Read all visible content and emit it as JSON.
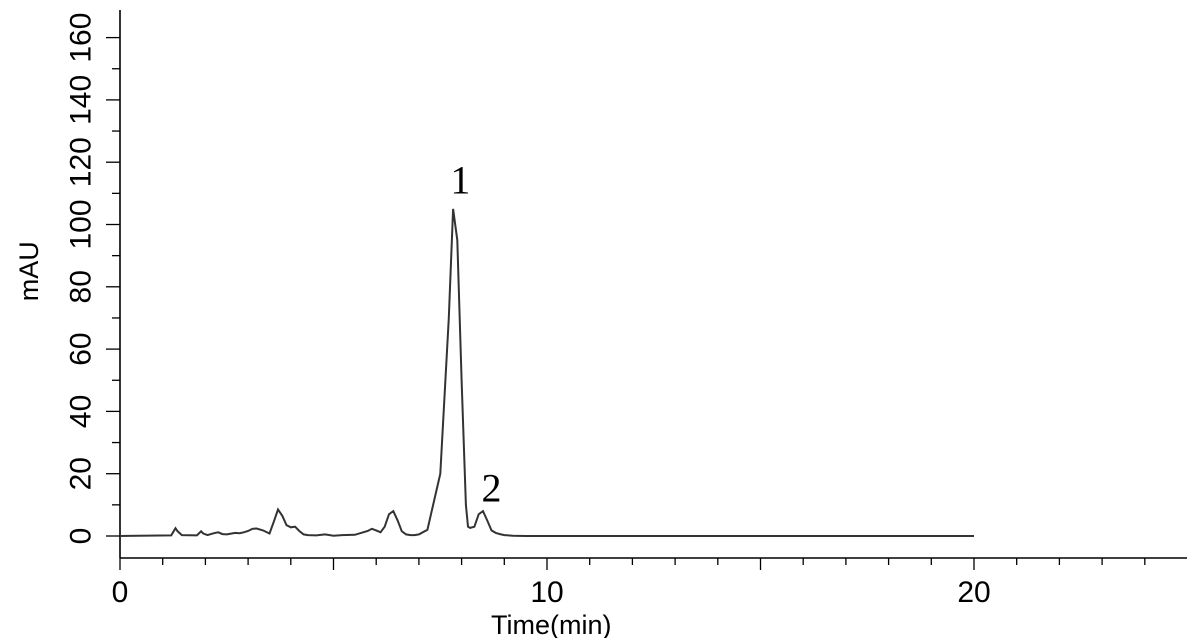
{
  "chart_data": {
    "type": "line",
    "title": "",
    "xlabel": "Time(min)",
    "ylabel": "mAU",
    "xlim": [
      0,
      25
    ],
    "ylim": [
      -7,
      170
    ],
    "x_ticks": [
      0,
      10,
      20
    ],
    "y_ticks": [
      0,
      20,
      40,
      60,
      80,
      100,
      120,
      140,
      160
    ],
    "grid": false,
    "series": [
      {
        "x": [
          0,
          1.2,
          1.3,
          1.35,
          1.45,
          1.8,
          1.9,
          1.95,
          2.05,
          2.2,
          2.3,
          2.4,
          2.5,
          2.7,
          2.8,
          2.9,
          3.0,
          3.1,
          3.2,
          3.35,
          3.5,
          3.6,
          3.7,
          3.8,
          3.9,
          4.0,
          4.1,
          4.2,
          4.3,
          4.4,
          4.6,
          4.8,
          5.0,
          5.2,
          5.5,
          5.8,
          5.9,
          6.0,
          6.1,
          6.2,
          6.3,
          6.4,
          6.5,
          6.6,
          6.7,
          6.8,
          6.9,
          7.0,
          7.2,
          7.5,
          7.7,
          7.8,
          7.9,
          8.0,
          8.1,
          8.15,
          8.2,
          8.3,
          8.4,
          8.5,
          8.6,
          8.7,
          8.8,
          8.9,
          9.0,
          9.2,
          9.5,
          10,
          12,
          15,
          18,
          20
        ],
        "y": [
          0,
          0.2,
          2.5,
          1.5,
          0.3,
          0.2,
          1.5,
          0.8,
          0.3,
          0.9,
          1.2,
          0.6,
          0.5,
          1.0,
          0.9,
          1.2,
          1.6,
          2.3,
          2.4,
          1.8,
          0.8,
          4.5,
          8.5,
          6.5,
          3.5,
          2.8,
          3.0,
          1.6,
          0.5,
          0.3,
          0.2,
          0.5,
          0.1,
          0.3,
          0.4,
          1.6,
          2.3,
          1.8,
          1.2,
          3.0,
          7.0,
          8.0,
          5.0,
          1.5,
          0.5,
          0.3,
          0.3,
          0.5,
          2.0,
          20,
          70,
          105,
          95,
          50,
          10,
          3,
          2.6,
          3.0,
          7.0,
          8.0,
          5.0,
          1.8,
          1.0,
          0.6,
          0.3,
          0.1,
          0,
          0,
          0,
          0,
          0,
          0
        ]
      }
    ],
    "annotations": [
      {
        "text": "1",
        "x": 7.97,
        "y": 110
      },
      {
        "text": "2",
        "x": 8.7,
        "y": 11
      }
    ]
  }
}
